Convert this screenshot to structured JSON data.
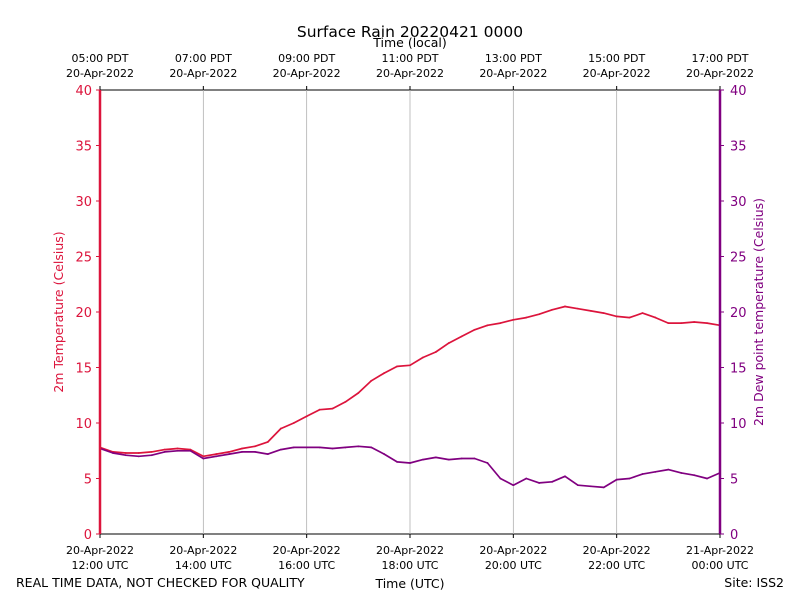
{
  "chart_data": {
    "type": "line",
    "title": "Surface Rain 20220421 0000",
    "top_axis_label": "Time (local)",
    "xlabel": "Time (UTC)",
    "ylabel_left": "2m Temperature (Celsius)",
    "ylabel_right": "2m Dew point temperature (Celsius)",
    "x_range_hours_utc": [
      12,
      24
    ],
    "ylim_left": [
      0,
      40
    ],
    "ylim_right": [
      0,
      40
    ],
    "y_ticks": [
      "0",
      "5",
      "10",
      "15",
      "20",
      "25",
      "30",
      "35",
      "40"
    ],
    "x_ticks_bottom": [
      {
        "hour": 12,
        "line1": "20-Apr-2022",
        "line2": "12:00 UTC"
      },
      {
        "hour": 14,
        "line1": "20-Apr-2022",
        "line2": "14:00 UTC"
      },
      {
        "hour": 16,
        "line1": "20-Apr-2022",
        "line2": "16:00 UTC"
      },
      {
        "hour": 18,
        "line1": "20-Apr-2022",
        "line2": "18:00 UTC"
      },
      {
        "hour": 20,
        "line1": "20-Apr-2022",
        "line2": "20:00 UTC"
      },
      {
        "hour": 22,
        "line1": "20-Apr-2022",
        "line2": "22:00 UTC"
      },
      {
        "hour": 24,
        "line1": "21-Apr-2022",
        "line2": "00:00 UTC"
      }
    ],
    "x_ticks_top": [
      {
        "hour": 12,
        "line1": "05:00 PDT",
        "line2": "20-Apr-2022"
      },
      {
        "hour": 14,
        "line1": "07:00 PDT",
        "line2": "20-Apr-2022"
      },
      {
        "hour": 16,
        "line1": "09:00 PDT",
        "line2": "20-Apr-2022"
      },
      {
        "hour": 18,
        "line1": "11:00 PDT",
        "line2": "20-Apr-2022"
      },
      {
        "hour": 20,
        "line1": "13:00 PDT",
        "line2": "20-Apr-2022"
      },
      {
        "hour": 22,
        "line1": "15:00 PDT",
        "line2": "20-Apr-2022"
      },
      {
        "hour": 24,
        "line1": "17:00 PDT",
        "line2": "20-Apr-2022"
      }
    ],
    "grid": "vertical",
    "series": [
      {
        "name": "2m Temperature",
        "axis": "left",
        "color": "#dc143c",
        "x": [
          12.0,
          12.25,
          12.5,
          12.75,
          13.0,
          13.25,
          13.5,
          13.75,
          14.0,
          14.25,
          14.5,
          14.75,
          15.0,
          15.25,
          15.5,
          15.75,
          16.0,
          16.25,
          16.5,
          16.75,
          17.0,
          17.25,
          17.5,
          17.75,
          18.0,
          18.25,
          18.5,
          18.75,
          19.0,
          19.25,
          19.5,
          19.75,
          20.0,
          20.25,
          20.5,
          20.75,
          21.0,
          21.25,
          21.5,
          21.75,
          22.0,
          22.25,
          22.5,
          22.75,
          23.0,
          23.25,
          23.5,
          23.75,
          24.0
        ],
        "values": [
          7.8,
          7.4,
          7.3,
          7.3,
          7.4,
          7.6,
          7.7,
          7.6,
          7.0,
          7.2,
          7.4,
          7.7,
          7.9,
          8.3,
          9.5,
          10.0,
          10.6,
          11.2,
          11.3,
          11.9,
          12.7,
          13.8,
          14.5,
          15.1,
          15.2,
          15.9,
          16.4,
          17.2,
          17.8,
          18.4,
          18.8,
          19.0,
          19.3,
          19.5,
          19.8,
          20.2,
          20.5,
          20.3,
          20.1,
          19.9,
          19.6,
          19.5,
          19.9,
          19.5,
          19.0,
          19.0,
          19.1,
          19.0,
          18.8
        ]
      },
      {
        "name": "2m Dew point temperature",
        "axis": "right",
        "color": "#800080",
        "x": [
          12.0,
          12.25,
          12.5,
          12.75,
          13.0,
          13.25,
          13.5,
          13.75,
          14.0,
          14.25,
          14.5,
          14.75,
          15.0,
          15.25,
          15.5,
          15.75,
          16.0,
          16.25,
          16.5,
          16.75,
          17.0,
          17.25,
          17.5,
          17.75,
          18.0,
          18.25,
          18.5,
          18.75,
          19.0,
          19.25,
          19.5,
          19.75,
          20.0,
          20.25,
          20.5,
          20.75,
          21.0,
          21.25,
          21.5,
          21.75,
          22.0,
          22.25,
          22.5,
          22.75,
          23.0,
          23.25,
          23.5,
          23.75,
          24.0
        ],
        "values": [
          7.7,
          7.3,
          7.1,
          7.0,
          7.1,
          7.4,
          7.5,
          7.5,
          6.8,
          7.0,
          7.2,
          7.4,
          7.4,
          7.2,
          7.6,
          7.8,
          7.8,
          7.8,
          7.7,
          7.8,
          7.9,
          7.8,
          7.2,
          6.5,
          6.4,
          6.7,
          6.9,
          6.7,
          6.8,
          6.8,
          6.4,
          5.0,
          4.4,
          5.0,
          4.6,
          4.7,
          5.2,
          4.4,
          4.3,
          4.2,
          4.9,
          5.0,
          5.4,
          5.6,
          5.8,
          5.5,
          5.3,
          5.0,
          5.5
        ]
      }
    ]
  },
  "footer": {
    "left": "REAL TIME DATA, NOT CHECKED FOR QUALITY",
    "right": "Site: ISS2"
  }
}
